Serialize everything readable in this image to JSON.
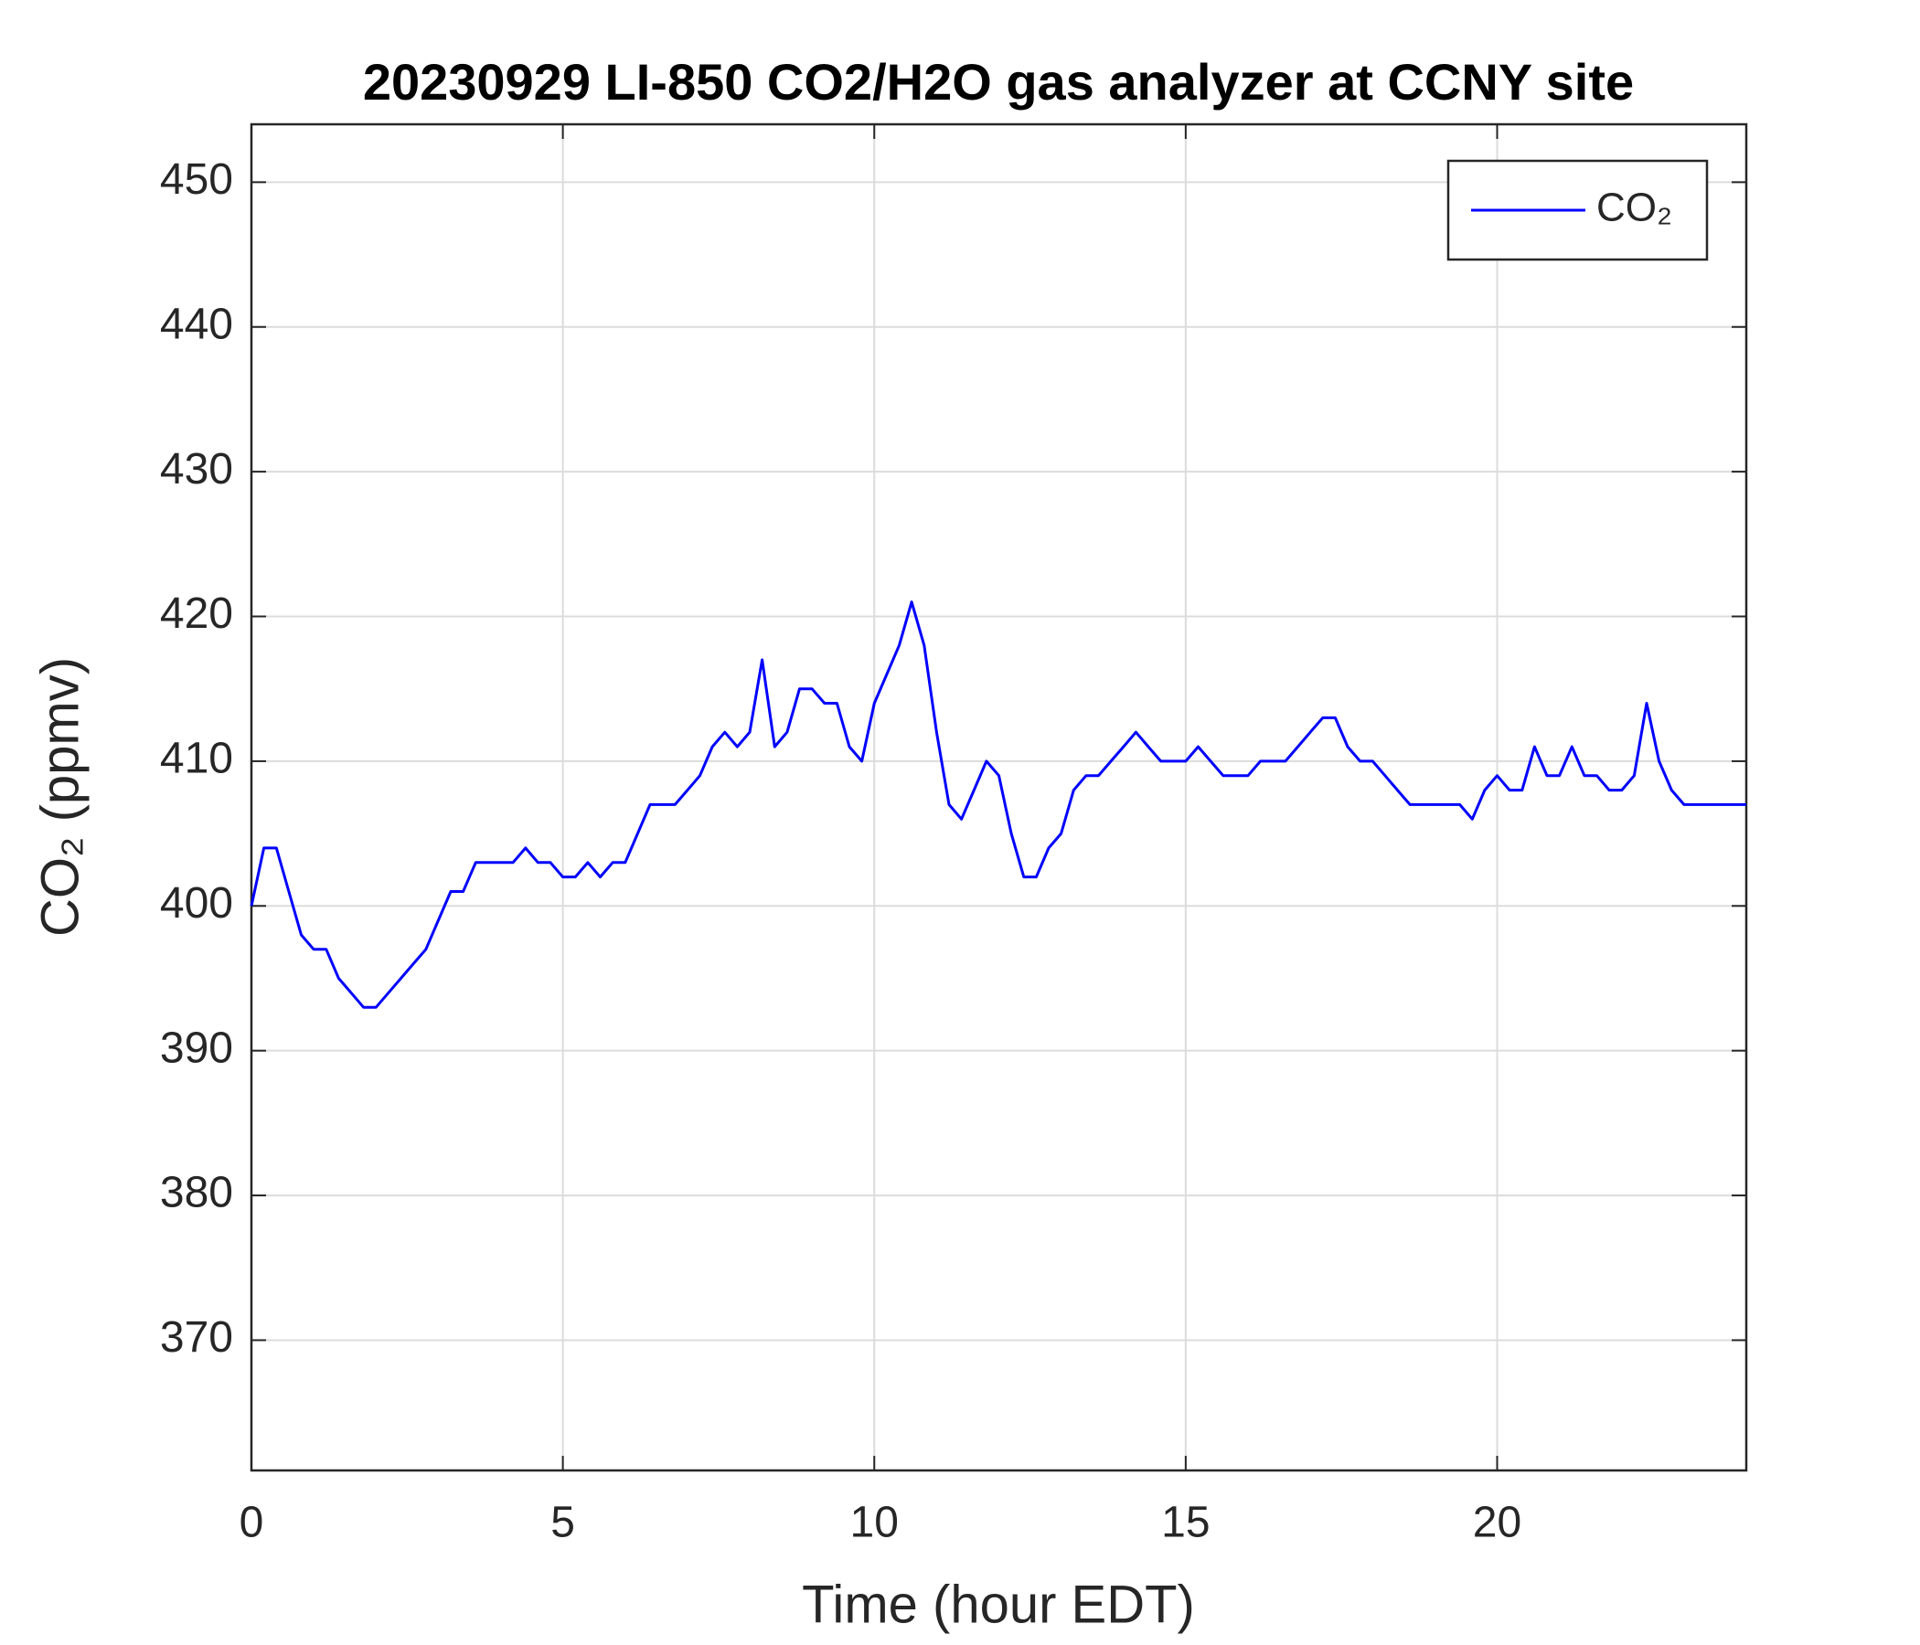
{
  "chart_data": {
    "type": "line",
    "title": "20230929 LI-850 CO2/H2O gas analyzer at CCNY site",
    "xlabel": "Time (hour EDT)",
    "ylabel": "CO₂ (ppmv)",
    "x": [
      0,
      0.2,
      0.4,
      0.6,
      0.8,
      1,
      1.2,
      1.4,
      1.6,
      1.8,
      2,
      2.2,
      2.4,
      2.6,
      2.8,
      3,
      3.2,
      3.4,
      3.6,
      3.8,
      4,
      4.2,
      4.4,
      4.6,
      4.8,
      5,
      5.2,
      5.4,
      5.6,
      5.8,
      6,
      6.2,
      6.4,
      6.6,
      6.8,
      7,
      7.2,
      7.4,
      7.6,
      7.8,
      8,
      8.2,
      8.4,
      8.6,
      8.8,
      9,
      9.2,
      9.4,
      9.6,
      9.8,
      10,
      10.2,
      10.4,
      10.6,
      10.8,
      11,
      11.2,
      11.4,
      11.6,
      11.8,
      12,
      12.2,
      12.4,
      12.6,
      12.8,
      13,
      13.2,
      13.4,
      13.6,
      13.8,
      14,
      14.2,
      14.4,
      14.6,
      14.8,
      15,
      15.2,
      15.4,
      15.6,
      15.8,
      16,
      16.2,
      16.4,
      16.6,
      16.8,
      17,
      17.2,
      17.4,
      17.6,
      17.8,
      18,
      18.2,
      18.4,
      18.6,
      18.8,
      19,
      19.2,
      19.4,
      19.6,
      19.8,
      20,
      20.2,
      20.4,
      20.6,
      20.8,
      21,
      21.2,
      21.4,
      21.6,
      21.8,
      22,
      22.2,
      22.4,
      22.6,
      22.8,
      23,
      23.2,
      23.4,
      23.6,
      23.8,
      24
    ],
    "series": [
      {
        "name": "CO₂",
        "color": "#0000ff",
        "values": [
          400,
          404,
          404,
          401,
          398,
          397,
          397,
          395,
          394,
          393,
          393,
          394,
          395,
          396,
          397,
          399,
          401,
          401,
          403,
          403,
          403,
          403,
          404,
          403,
          403,
          402,
          402,
          403,
          402,
          403,
          403,
          405,
          407,
          407,
          407,
          408,
          409,
          411,
          412,
          411,
          412,
          417,
          411,
          412,
          415,
          415,
          414,
          414,
          411,
          410,
          414,
          416,
          418,
          421,
          418,
          412,
          407,
          406,
          408,
          410,
          409,
          405,
          402,
          402,
          404,
          405,
          408,
          409,
          409,
          410,
          411,
          412,
          411,
          410,
          410,
          410,
          411,
          410,
          409,
          409,
          409,
          410,
          410,
          410,
          411,
          412,
          413,
          413,
          411,
          410,
          410,
          409,
          408,
          407,
          407,
          407,
          407,
          407,
          406,
          408,
          409,
          408,
          408,
          411,
          409,
          409,
          411,
          409,
          409,
          408,
          408,
          409,
          414,
          410,
          408,
          407,
          407,
          407,
          407,
          407,
          407
        ]
      }
    ],
    "xlim": [
      0,
      24
    ],
    "xticks": [
      0,
      5,
      10,
      15,
      20
    ],
    "ylim": [
      361,
      454
    ],
    "yticks": [
      370,
      380,
      390,
      400,
      410,
      420,
      430,
      440,
      450
    ],
    "grid": true,
    "legend": "upper right"
  }
}
